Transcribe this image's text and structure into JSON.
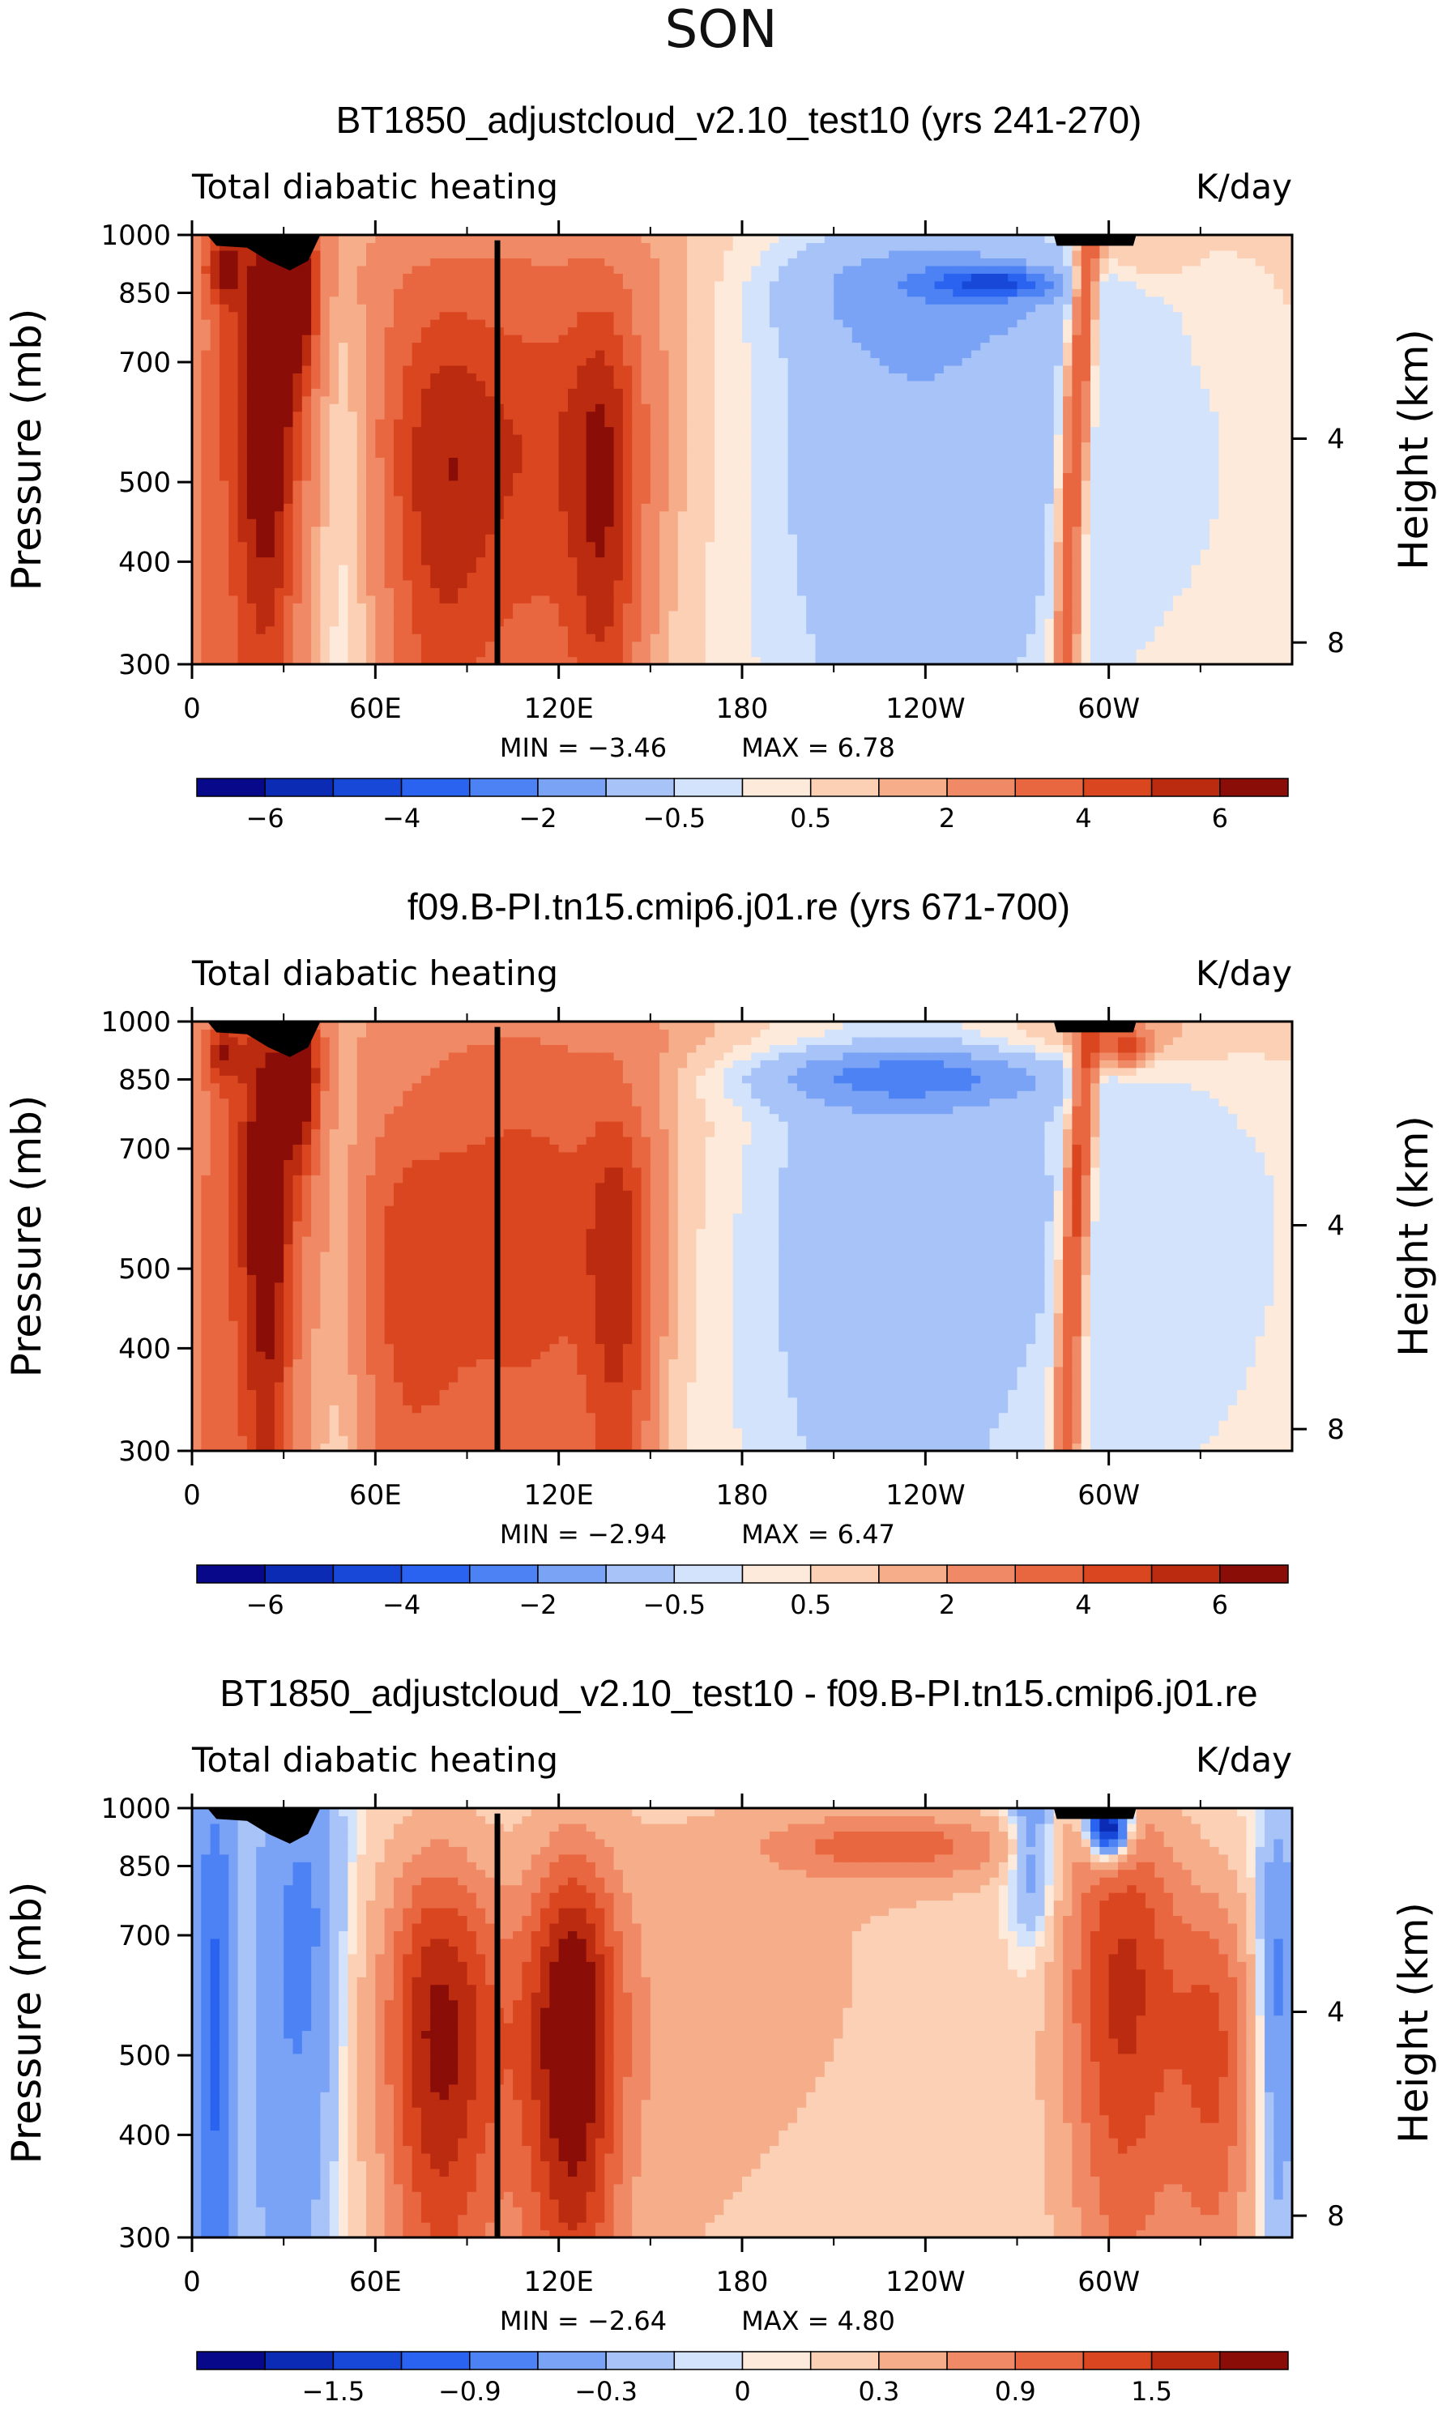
{
  "figure_title": "SON",
  "colors": {
    "ramp": [
      "#08088a",
      "#0c2bb5",
      "#1848d8",
      "#2a63ef",
      "#4d82f4",
      "#7aa3f6",
      "#a7c3f7",
      "#d2e3fb",
      "#fdeada",
      "#fbd0b5",
      "#f6ad8a",
      "#f08965",
      "#e86640",
      "#d9461f",
      "#bb2b10",
      "#8a0d08"
    ],
    "frame": "#000000",
    "topography": "#000000"
  },
  "chart_data": [
    {
      "type": "heatmap",
      "id": "panel1",
      "title": "BT1850_adjustcloud_v2.10_test10 (yrs 241-270)",
      "left_label": "Total diabatic heating",
      "right_label": "K/day",
      "ylabel": "Pressure (mb)",
      "ylabel2": "Height (km)",
      "x_ticks": [
        "0",
        "60E",
        "120E",
        "180",
        "120W",
        "60W"
      ],
      "x_tick_values": [
        0,
        60,
        120,
        180,
        240,
        300
      ],
      "xlim": [
        0,
        360
      ],
      "y_ticks": [
        "300",
        "400",
        "500",
        "700",
        "850",
        "1000"
      ],
      "y_tick_values": [
        300,
        400,
        500,
        700,
        850,
        1000
      ],
      "ylim": [
        1000,
        300
      ],
      "y2_ticks": [
        "8",
        "4"
      ],
      "y2_tick_values": [
        8,
        4
      ],
      "min_text": "MIN = −3.46",
      "max_text": "MAX = 6.78",
      "min_value": -3.46,
      "max_value": 6.78,
      "colorbar_labels": [
        "−6",
        "−4",
        "−2",
        "−0.5",
        "0.5",
        "2",
        "4",
        "6"
      ],
      "field": [
        {
          "lon": 18,
          "p": 720,
          "v": 2.2,
          "dl": 14,
          "dp": 640,
          "stretch": 2
        },
        {
          "lon": 25,
          "p": 620,
          "v": 4.5,
          "dl": 7,
          "dp": 280
        },
        {
          "lon": 35,
          "p": 850,
          "v": 4.0,
          "dl": 4,
          "dp": 120
        },
        {
          "lon": 10,
          "p": 920,
          "v": 3.5,
          "dl": 4,
          "dp": 60
        },
        {
          "lon": 50,
          "p": 600,
          "v": -1.0,
          "dl": 6,
          "dp": 450
        },
        {
          "lon": 80,
          "p": 480,
          "v": 2.5,
          "dl": 12,
          "dp": 220
        },
        {
          "lon": 110,
          "p": 500,
          "v": 2.7,
          "dl": 25,
          "dp": 220
        },
        {
          "lon": 135,
          "p": 480,
          "v": 3.0,
          "dl": 8,
          "dp": 240
        },
        {
          "lon": 100,
          "p": 700,
          "v": 1.2,
          "dl": 55,
          "dp": 250
        },
        {
          "lon": 120,
          "p": 920,
          "v": 0.6,
          "dl": 90,
          "dp": 100
        },
        {
          "lon": 235,
          "p": 580,
          "v": -2.2,
          "dl": 45,
          "dp": 360
        },
        {
          "lon": 240,
          "p": 880,
          "v": -1.7,
          "dl": 45,
          "dp": 100
        },
        {
          "lon": 262,
          "p": 875,
          "v": -3.3,
          "dl": 14,
          "dp": 25
        },
        {
          "lon": 290,
          "p": 650,
          "v": 4.0,
          "dl": 3,
          "dp": 450,
          "stretch": 1
        },
        {
          "lon": 330,
          "p": 520,
          "v": -0.6,
          "dl": 30,
          "dp": 250
        },
        {
          "lon": 310,
          "p": 950,
          "v": 0.9,
          "dl": 12,
          "dp": 60
        }
      ],
      "topo": [
        [
          5,
          1000
        ],
        [
          8,
          970
        ],
        [
          18,
          965
        ],
        [
          25,
          930
        ],
        [
          32,
          905
        ],
        [
          38,
          930
        ],
        [
          42,
          1000
        ]
      ],
      "topo2": [
        [
          282,
          1000
        ],
        [
          283,
          970
        ],
        [
          308,
          970
        ],
        [
          309,
          1000
        ]
      ]
    },
    {
      "type": "heatmap",
      "id": "panel2",
      "title": "f09.B-PI.tn15.cmip6.j01.re (yrs 671-700)",
      "left_label": "Total diabatic heating",
      "right_label": "K/day",
      "ylabel": "Pressure (mb)",
      "ylabel2": "Height (km)",
      "x_ticks": [
        "0",
        "60E",
        "120E",
        "180",
        "120W",
        "60W"
      ],
      "x_tick_values": [
        0,
        60,
        120,
        180,
        240,
        300
      ],
      "xlim": [
        0,
        360
      ],
      "y_ticks": [
        "300",
        "400",
        "500",
        "700",
        "850",
        "1000"
      ],
      "y_tick_values": [
        300,
        400,
        500,
        700,
        850,
        1000
      ],
      "ylim": [
        1000,
        300
      ],
      "y2_ticks": [
        "8",
        "4"
      ],
      "y2_tick_values": [
        8,
        4
      ],
      "min_text": "MIN = −2.94",
      "max_text": "MAX = 6.47",
      "min_value": -2.94,
      "max_value": 6.47,
      "colorbar_labels": [
        "−6",
        "−4",
        "−2",
        "−0.5",
        "0.5",
        "2",
        "4",
        "6"
      ],
      "field": [
        {
          "lon": 18,
          "p": 700,
          "v": 2.2,
          "dl": 14,
          "dp": 640,
          "stretch": 2
        },
        {
          "lon": 25,
          "p": 560,
          "v": 4.0,
          "dl": 6,
          "dp": 300
        },
        {
          "lon": 36,
          "p": 850,
          "v": 4.2,
          "dl": 4,
          "dp": 120
        },
        {
          "lon": 10,
          "p": 920,
          "v": 3.0,
          "dl": 4,
          "dp": 60
        },
        {
          "lon": 50,
          "p": 600,
          "v": -0.8,
          "dl": 6,
          "dp": 450
        },
        {
          "lon": 70,
          "p": 450,
          "v": 2.3,
          "dl": 14,
          "dp": 200
        },
        {
          "lon": 110,
          "p": 500,
          "v": 2.6,
          "dl": 22,
          "dp": 240
        },
        {
          "lon": 140,
          "p": 480,
          "v": 3.2,
          "dl": 8,
          "dp": 220
        },
        {
          "lon": 100,
          "p": 720,
          "v": 1.2,
          "dl": 55,
          "dp": 250
        },
        {
          "lon": 130,
          "p": 940,
          "v": 0.6,
          "dl": 80,
          "dp": 80
        },
        {
          "lon": 228,
          "p": 580,
          "v": -2.1,
          "dl": 45,
          "dp": 360
        },
        {
          "lon": 235,
          "p": 860,
          "v": -2.6,
          "dl": 38,
          "dp": 50
        },
        {
          "lon": 290,
          "p": 650,
          "v": 4.2,
          "dl": 3,
          "dp": 450,
          "stretch": 1
        },
        {
          "lon": 330,
          "p": 550,
          "v": -1.0,
          "dl": 30,
          "dp": 260
        },
        {
          "lon": 305,
          "p": 935,
          "v": 3.0,
          "dl": 5,
          "dp": 40
        },
        {
          "lon": 300,
          "p": 960,
          "v": 1.0,
          "dl": 25,
          "dp": 60
        }
      ],
      "topo": [
        [
          5,
          1000
        ],
        [
          8,
          970
        ],
        [
          18,
          965
        ],
        [
          25,
          930
        ],
        [
          32,
          905
        ],
        [
          38,
          930
        ],
        [
          42,
          1000
        ]
      ],
      "topo2": [
        [
          282,
          1000
        ],
        [
          283,
          970
        ],
        [
          308,
          970
        ],
        [
          309,
          1000
        ]
      ]
    },
    {
      "type": "heatmap",
      "id": "panel3",
      "title": "BT1850_adjustcloud_v2.10_test10 - f09.B-PI.tn15.cmip6.j01.re",
      "left_label": "Total diabatic heating",
      "right_label": "K/day",
      "ylabel": "Pressure (mb)",
      "ylabel2": "Height (km)",
      "x_ticks": [
        "0",
        "60E",
        "120E",
        "180",
        "120W",
        "60W"
      ],
      "x_tick_values": [
        0,
        60,
        120,
        180,
        240,
        300
      ],
      "xlim": [
        0,
        360
      ],
      "y_ticks": [
        "300",
        "400",
        "500",
        "700",
        "850",
        "1000"
      ],
      "y_tick_values": [
        300,
        400,
        500,
        700,
        850,
        1000
      ],
      "ylim": [
        1000,
        300
      ],
      "y2_ticks": [
        "8",
        "4"
      ],
      "y2_tick_values": [
        8,
        4
      ],
      "min_text": "MIN = −2.64",
      "max_text": "MAX = 4.80",
      "min_value": -2.64,
      "max_value": 4.8,
      "colorbar_labels": [
        "−1.5",
        "−0.9",
        "−0.3",
        "0",
        "0.3",
        "0.9",
        "1.5"
      ],
      "field": [
        {
          "lon": 8,
          "p": 550,
          "v": -1.0,
          "dl": 6,
          "dp": 450
        },
        {
          "lon": 28,
          "p": 600,
          "v": -0.5,
          "dl": 10,
          "dp": 400
        },
        {
          "lon": 15,
          "p": 600,
          "v": 0.3,
          "dl": 4,
          "dp": 400
        },
        {
          "lon": 40,
          "p": 700,
          "v": -0.5,
          "dl": 8,
          "dp": 300
        },
        {
          "lon": 80,
          "p": 540,
          "v": 1.3,
          "dl": 12,
          "dp": 250
        },
        {
          "lon": 125,
          "p": 540,
          "v": 1.5,
          "dl": 10,
          "dp": 250
        },
        {
          "lon": 105,
          "p": 500,
          "v": 0.7,
          "dl": 30,
          "dp": 200
        },
        {
          "lon": 180,
          "p": 650,
          "v": 0.3,
          "dl": 60,
          "dp": 400
        },
        {
          "lon": 230,
          "p": 900,
          "v": 0.9,
          "dl": 30,
          "dp": 60
        },
        {
          "lon": 275,
          "p": 900,
          "v": -0.8,
          "dl": 6,
          "dp": 150
        },
        {
          "lon": 300,
          "p": 950,
          "v": -2.4,
          "dl": 5,
          "dp": 60
        },
        {
          "lon": 305,
          "p": 600,
          "v": 1.5,
          "dl": 14,
          "dp": 280
        },
        {
          "lon": 335,
          "p": 500,
          "v": 1.1,
          "dl": 10,
          "dp": 200
        },
        {
          "lon": 355,
          "p": 600,
          "v": -0.8,
          "dl": 5,
          "dp": 250
        }
      ],
      "topo": [
        [
          5,
          1000
        ],
        [
          8,
          970
        ],
        [
          18,
          965
        ],
        [
          25,
          930
        ],
        [
          32,
          905
        ],
        [
          38,
          930
        ],
        [
          42,
          1000
        ]
      ],
      "topo2": [
        [
          282,
          1000
        ],
        [
          283,
          970
        ],
        [
          308,
          970
        ],
        [
          309,
          1000
        ]
      ]
    }
  ]
}
